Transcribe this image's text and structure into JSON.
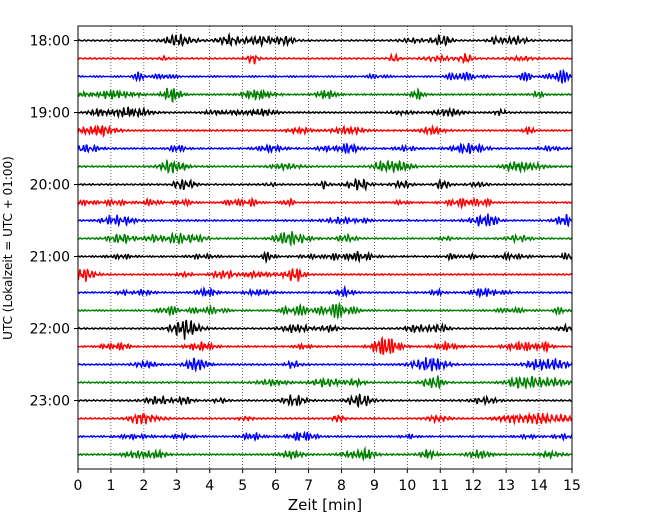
{
  "chart_data": {
    "type": "line",
    "title": "",
    "xlabel": "Zeit  [min]",
    "ylabel": "UTC (Lokalzeit = UTC + 01:00)",
    "xlim": [
      0,
      15
    ],
    "x_ticks": [
      0,
      1,
      2,
      3,
      4,
      5,
      6,
      7,
      8,
      9,
      10,
      11,
      12,
      13,
      14,
      15
    ],
    "x_tick_labels": [
      "0",
      "1",
      "2",
      "3",
      "4",
      "5",
      "6",
      "7",
      "8",
      "9",
      "10",
      "11",
      "12",
      "13",
      "14",
      "15"
    ],
    "y_tick_labels": [
      "18:00",
      "19:00",
      "20:00",
      "21:00",
      "22:00",
      "23:00"
    ],
    "y_ticks_hour_index": [
      0,
      4,
      8,
      12,
      16,
      20
    ],
    "grid": "vertical dotted",
    "trace_colors": [
      "#000000",
      "#ff0000",
      "#0000ff",
      "#008000"
    ],
    "traces": [
      {
        "start": "18:00"
      },
      {
        "start": "18:15"
      },
      {
        "start": "18:30"
      },
      {
        "start": "18:45"
      },
      {
        "start": "19:00"
      },
      {
        "start": "19:15"
      },
      {
        "start": "19:30"
      },
      {
        "start": "19:45"
      },
      {
        "start": "20:00"
      },
      {
        "start": "20:15"
      },
      {
        "start": "20:30"
      },
      {
        "start": "20:45"
      },
      {
        "start": "21:00"
      },
      {
        "start": "21:15"
      },
      {
        "start": "21:30"
      },
      {
        "start": "21:45"
      },
      {
        "start": "22:00"
      },
      {
        "start": "22:15"
      },
      {
        "start": "22:30"
      },
      {
        "start": "22:45"
      },
      {
        "start": "23:00"
      },
      {
        "start": "23:15"
      },
      {
        "start": "23:30"
      },
      {
        "start": "23:45"
      }
    ]
  }
}
